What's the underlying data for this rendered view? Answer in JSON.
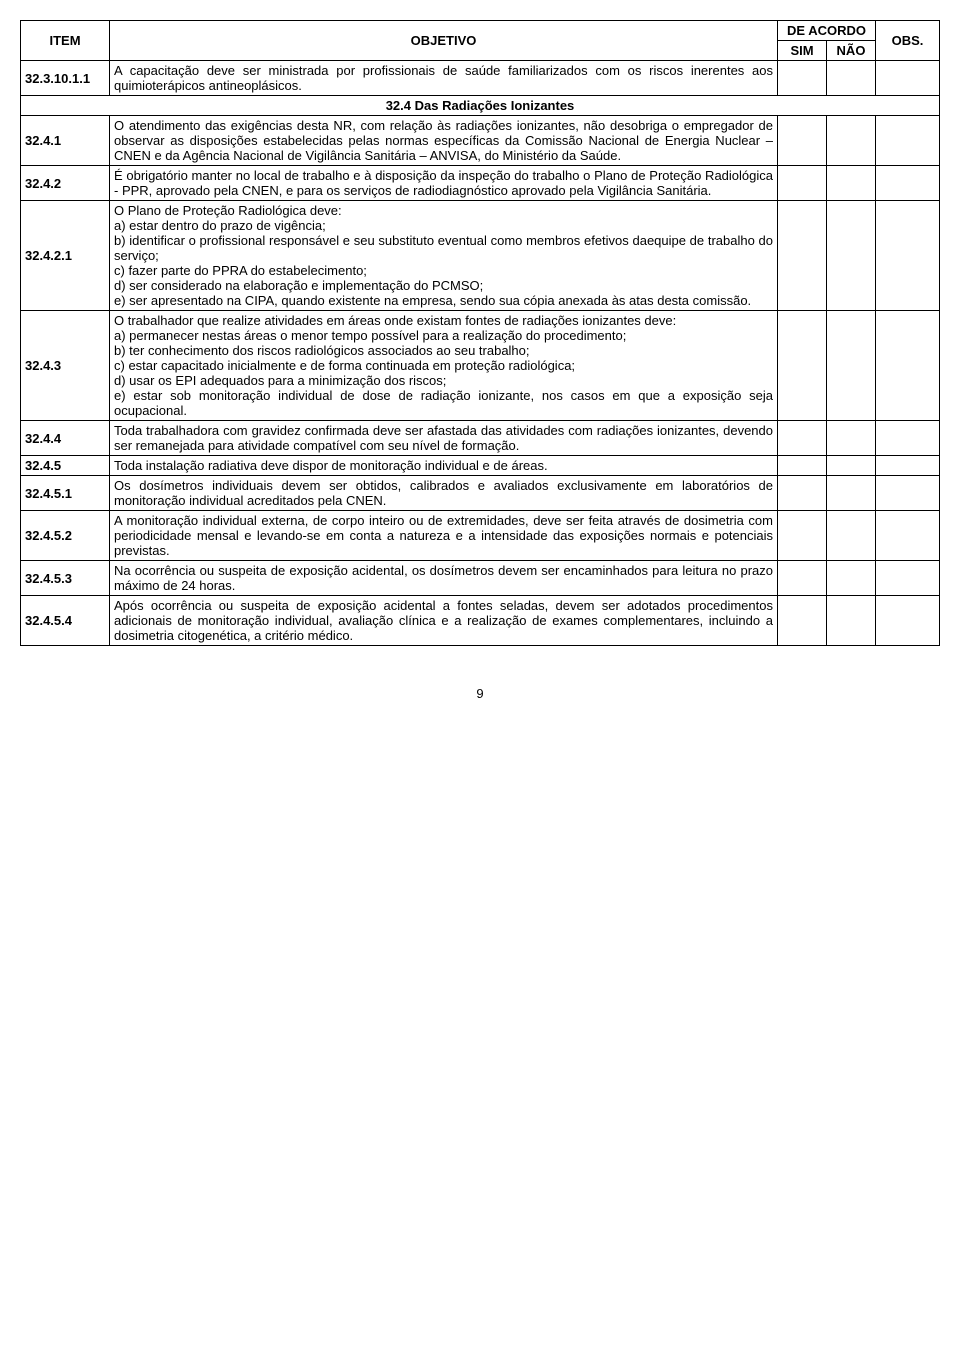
{
  "headers": {
    "item": "ITEM",
    "objetivo": "OBJETIVO",
    "acordo": "DE ACORDO",
    "sim": "SIM",
    "nao": "NÃO",
    "obs": "OBS."
  },
  "section_title": "32.4 Das Radiações Ionizantes",
  "rows": [
    {
      "item": "32.3.10.1.1",
      "text": "A capacitação deve ser ministrada por profissionais de saúde familiarizados com os riscos inerentes aos quimioterápicos antineoplásicos."
    },
    {
      "item": "32.4.1",
      "text": "O atendimento das exigências desta NR, com relação às radiações ionizantes, não desobriga o empregador de observar as disposições estabelecidas pelas normas específicas da Comissão Nacional de Energia Nuclear – CNEN e da Agência Nacional de Vigilância Sanitária – ANVISA, do Ministério da Saúde."
    },
    {
      "item": "32.4.2",
      "text": "É obrigatório manter no local de trabalho e à disposição da inspeção do trabalho o Plano de Proteção Radiológica - PPR, aprovado pela CNEN, e para os serviços de radiodiagnóstico aprovado pela Vigilância Sanitária."
    },
    {
      "item": "32.4.2.1",
      "text": "O Plano de Proteção Radiológica deve:\na) estar dentro do prazo de vigência;\nb) identificar o profissional responsável e seu substituto eventual como membros efetivos daequipe de trabalho do serviço;\nc) fazer parte do PPRA do estabelecimento;\nd) ser considerado na elaboração e implementação do PCMSO;\ne) ser apresentado na CIPA, quando existente na empresa, sendo sua cópia anexada às atas desta comissão."
    },
    {
      "item": "32.4.3",
      "text": "O trabalhador que realize atividades em áreas onde existam fontes de radiações ionizantes deve:\na) permanecer nestas áreas o menor tempo possível para a realização do procedimento;\nb) ter conhecimento dos riscos radiológicos associados ao seu trabalho;\nc) estar capacitado inicialmente e de forma continuada em proteção radiológica;\nd) usar os EPI adequados para a minimização dos riscos;\ne) estar sob monitoração individual de dose de radiação ionizante, nos casos em que a exposição seja ocupacional."
    },
    {
      "item": "32.4.4",
      "text": "Toda trabalhadora com gravidez confirmada deve ser afastada das atividades com radiações ionizantes, devendo ser remanejada para atividade compatível com seu nível de formação."
    },
    {
      "item": "32.4.5",
      "text": "Toda instalação radiativa deve dispor de monitoração individual e de áreas."
    },
    {
      "item": "32.4.5.1",
      "text": "Os dosímetros individuais devem ser obtidos, calibrados e avaliados exclusivamente em laboratórios de monitoração individual acreditados pela CNEN."
    },
    {
      "item": "32.4.5.2",
      "text": "A monitoração individual externa, de corpo inteiro ou de extremidades, deve ser feita através de dosimetria com periodicidade mensal e levando-se em conta a natureza e a intensidade das exposições normais e potenciais previstas."
    },
    {
      "item": "32.4.5.3",
      "text": "Na ocorrência ou suspeita de exposição acidental, os dosímetros devem ser encaminhados para leitura no prazo máximo de 24 horas."
    },
    {
      "item": "32.4.5.4",
      "text": "Após ocorrência ou suspeita de exposição acidental a fontes seladas, devem ser adotados procedimentos adicionais de monitoração individual, avaliação clínica e a realização de exames complementares, incluindo a dosimetria citogenética, a critério médico."
    }
  ],
  "page_number": "9"
}
